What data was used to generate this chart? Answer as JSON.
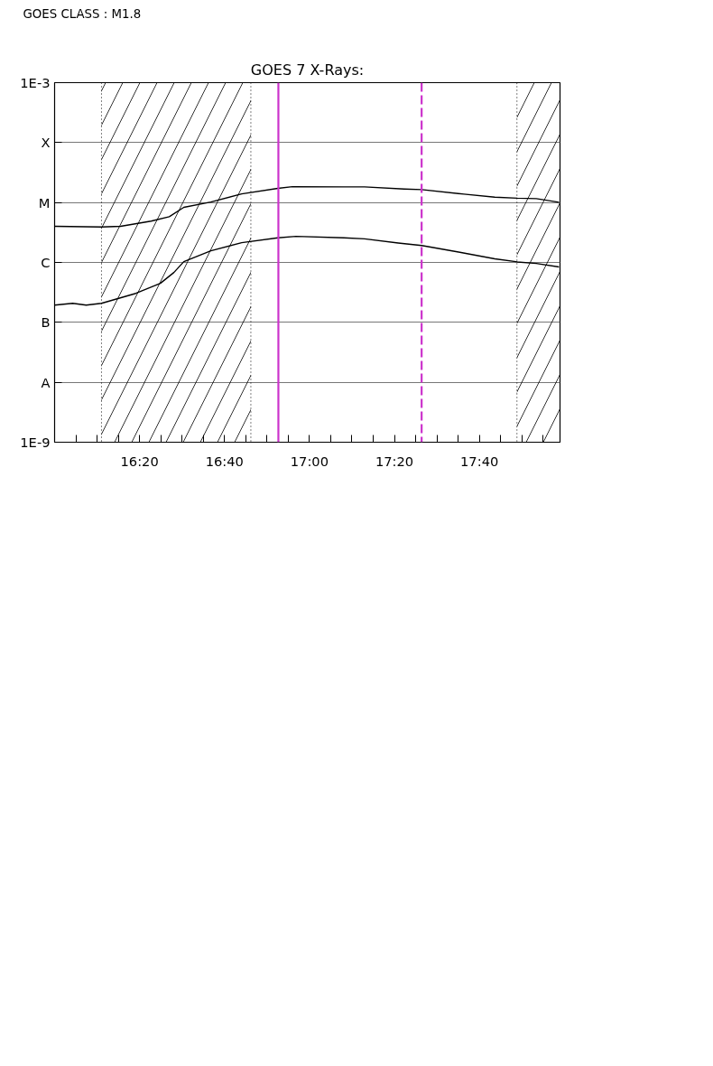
{
  "chart_data": {
    "type": "line",
    "title": "GOES 7 X-Rays:",
    "annotations": [
      "GOES CLASS : M1.8"
    ],
    "log": "y",
    "xlim": [
      16.0,
      17.983
    ],
    "ylim": [
      1e-09,
      0.001
    ],
    "xticks": [
      {
        "value": 16.0833,
        "label": null
      },
      {
        "value": 16.1667,
        "label": null
      },
      {
        "value": 16.25,
        "label": null
      },
      {
        "value": 16.3333,
        "label": "16:20"
      },
      {
        "value": 16.4167,
        "label": null
      },
      {
        "value": 16.5,
        "label": null
      },
      {
        "value": 16.5833,
        "label": null
      },
      {
        "value": 16.6667,
        "label": "16:40"
      },
      {
        "value": 16.75,
        "label": null
      },
      {
        "value": 16.8333,
        "label": null
      },
      {
        "value": 16.9167,
        "label": null
      },
      {
        "value": 17.0,
        "label": "17:00"
      },
      {
        "value": 17.0833,
        "label": null
      },
      {
        "value": 17.1667,
        "label": null
      },
      {
        "value": 17.25,
        "label": null
      },
      {
        "value": 17.3333,
        "label": "17:20"
      },
      {
        "value": 17.4167,
        "label": null
      },
      {
        "value": 17.5,
        "label": null
      },
      {
        "value": 17.5833,
        "label": null
      },
      {
        "value": 17.6667,
        "label": "17:40"
      },
      {
        "value": 17.75,
        "label": null
      },
      {
        "value": 17.8333,
        "label": null
      },
      {
        "value": 17.9167,
        "label": null
      }
    ],
    "yticks": [
      {
        "value": 1e-09,
        "label": "1E-9"
      },
      {
        "value": 1e-08,
        "label": "A"
      },
      {
        "value": 1e-07,
        "label": "B"
      },
      {
        "value": 1e-06,
        "label": "C"
      },
      {
        "value": 1e-05,
        "label": "M"
      },
      {
        "value": 0.0001,
        "label": "X"
      },
      {
        "value": 0.001,
        "label": "1E-3"
      }
    ],
    "grid": "y",
    "marker": "none",
    "line_style": "solid",
    "series": [
      {
        "color": "#000000",
        "x": [
          16.0,
          16.184,
          16.259,
          16.379,
          16.45,
          16.507,
          16.613,
          16.734,
          16.876,
          16.933,
          17.135,
          17.216,
          17.372,
          17.44,
          17.606,
          17.727,
          17.816,
          17.89,
          17.979
        ],
        "values": [
          4e-06,
          3.9e-06,
          4e-06,
          4.9e-06,
          5.8e-06,
          8.3e-06,
          1.02e-05,
          1.39e-05,
          1.72e-05,
          1.84e-05,
          1.82e-05,
          1.82e-05,
          1.68e-05,
          1.64e-05,
          1.38e-05,
          1.23e-05,
          1.18e-05,
          1.16e-05,
          1.01e-05
        ]
      },
      {
        "color": "#000000",
        "x": [
          16.0,
          16.071,
          16.124,
          16.184,
          16.319,
          16.415,
          16.468,
          16.507,
          16.613,
          16.734,
          16.876,
          16.947,
          17.135,
          17.216,
          17.348,
          17.44,
          17.585,
          17.727,
          17.816,
          17.89,
          17.979
        ],
        "values": [
          1.94e-07,
          2.08e-07,
          1.94e-07,
          2.08e-07,
          3.05e-07,
          4.48e-07,
          6.8e-07,
          1.03e-06,
          1.56e-06,
          2.14e-06,
          2.57e-06,
          2.72e-06,
          2.57e-06,
          2.48e-06,
          2.11e-06,
          1.92e-06,
          1.49e-06,
          1.15e-06,
          1.02e-06,
          9.6e-07,
          8.4e-07
        ]
      }
    ],
    "bands": [
      {
        "axis": "x",
        "from": 16.184,
        "to": 16.77,
        "color": "#000000"
      },
      {
        "axis": "x",
        "from": 17.814,
        "to": 17.983,
        "color": "#000000"
      }
    ],
    "ref_lines": [
      {
        "axis": "x",
        "value": 16.878,
        "color": "#cc33cc",
        "line_style": "solid"
      },
      {
        "axis": "x",
        "value": 17.44,
        "color": "#cc33cc",
        "line_style": "dashed"
      }
    ]
  }
}
